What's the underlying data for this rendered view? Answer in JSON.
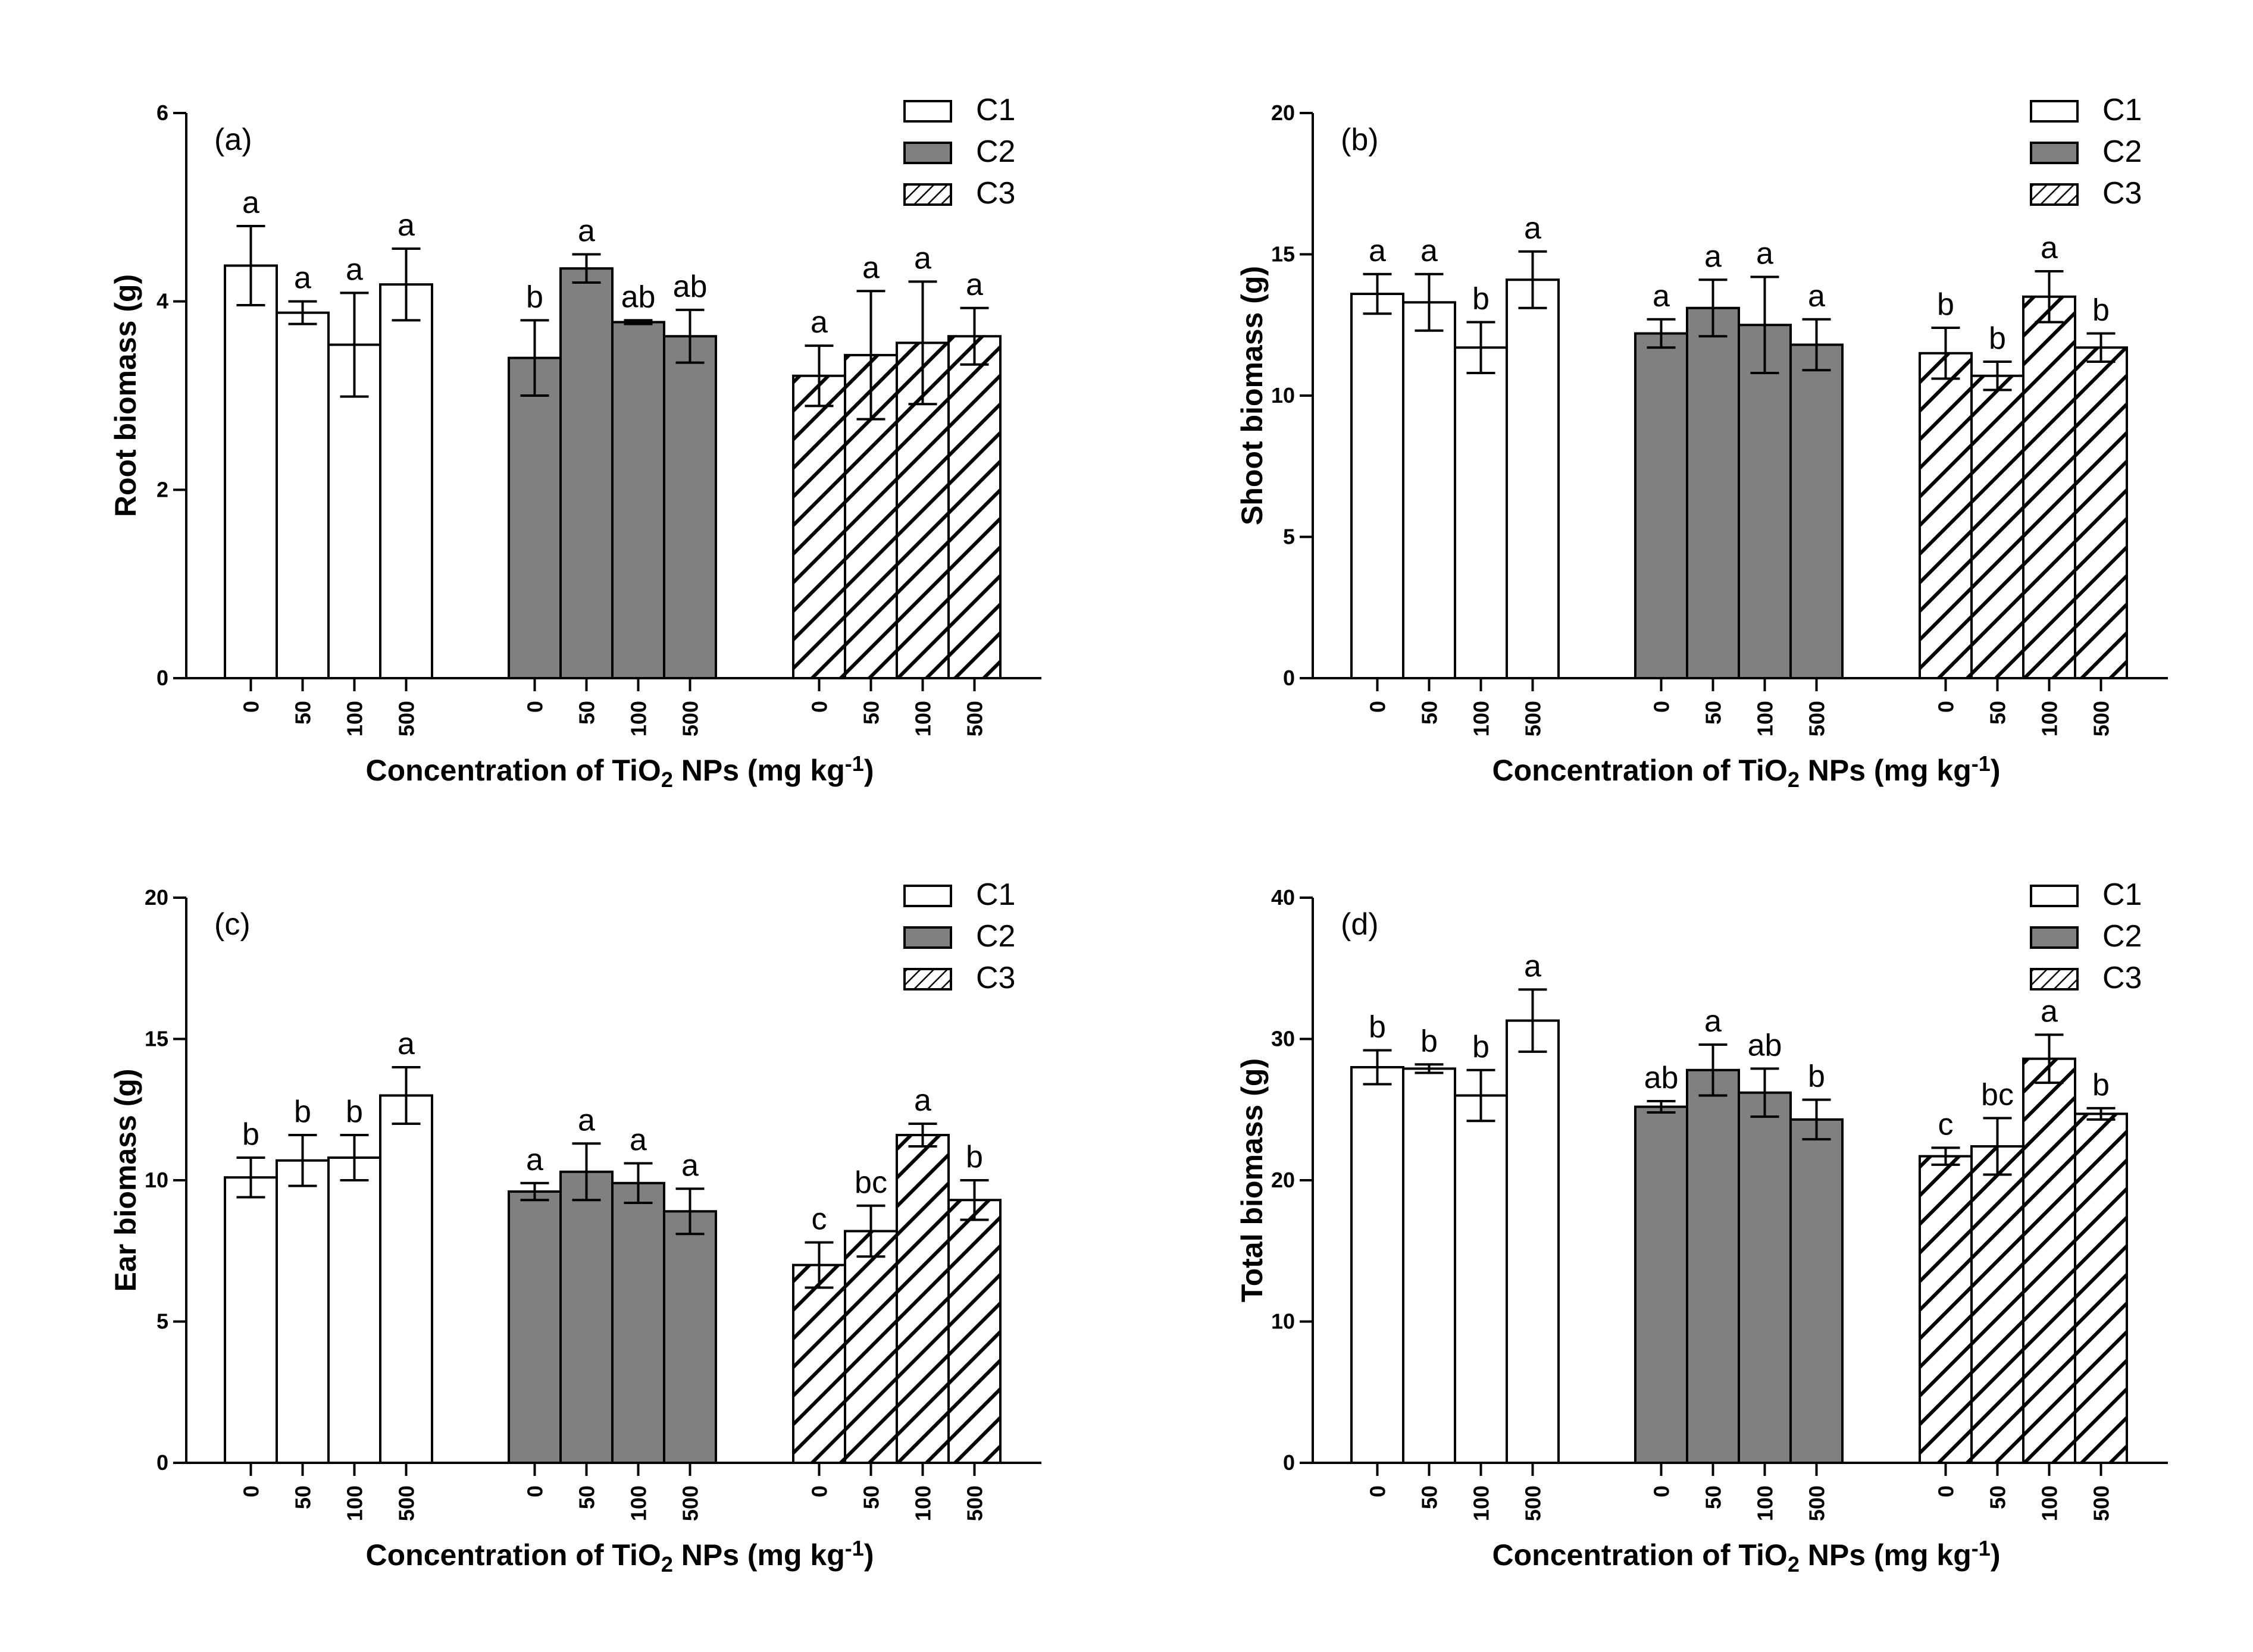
{
  "chart_data": [
    {
      "type": "bar",
      "panel_label": "(a)",
      "ylabel": "Root biomass (g)",
      "xlabel": "Concentration of TiO₂ NPs (mg kg⁻¹)",
      "ylim": [
        0,
        6
      ],
      "yticks": [
        "0",
        "2",
        "4",
        "6"
      ],
      "categories": [
        "0",
        "50",
        "100",
        "500"
      ],
      "legend_position": "top-right",
      "series": [
        {
          "name": "C1",
          "values": [
            4.38,
            3.88,
            3.54,
            4.18
          ],
          "errors": [
            0.42,
            0.12,
            0.55,
            0.38
          ],
          "letters": [
            "a",
            "a",
            "a",
            "a"
          ]
        },
        {
          "name": "C2",
          "values": [
            3.4,
            4.35,
            3.78,
            3.63
          ],
          "errors": [
            0.4,
            0.15,
            0.02,
            0.28
          ],
          "letters": [
            "b",
            "a",
            "ab",
            "ab"
          ]
        },
        {
          "name": "C3",
          "values": [
            3.21,
            3.43,
            3.56,
            3.63
          ],
          "errors": [
            0.32,
            0.68,
            0.65,
            0.3
          ],
          "letters": [
            "a",
            "a",
            "a",
            "a"
          ]
        }
      ]
    },
    {
      "type": "bar",
      "panel_label": "(b)",
      "ylabel": "Shoot biomass (g)",
      "xlabel": "Concentration of TiO₂ NPs (mg kg⁻¹)",
      "ylim": [
        0,
        20
      ],
      "yticks": [
        "0",
        "5",
        "10",
        "15",
        "20"
      ],
      "categories": [
        "0",
        "50",
        "100",
        "500"
      ],
      "legend_position": "top-right",
      "series": [
        {
          "name": "C1",
          "values": [
            13.6,
            13.3,
            11.7,
            14.1
          ],
          "errors": [
            0.7,
            1.0,
            0.9,
            1.0
          ],
          "letters": [
            "a",
            "a",
            "b",
            "a"
          ]
        },
        {
          "name": "C2",
          "values": [
            12.2,
            13.1,
            12.5,
            11.8
          ],
          "errors": [
            0.5,
            1.0,
            1.7,
            0.9
          ],
          "letters": [
            "a",
            "a",
            "a",
            "a"
          ]
        },
        {
          "name": "C3",
          "values": [
            11.5,
            10.7,
            13.5,
            11.7
          ],
          "errors": [
            0.9,
            0.5,
            0.9,
            0.5
          ],
          "letters": [
            "b",
            "b",
            "a",
            "b"
          ]
        }
      ]
    },
    {
      "type": "bar",
      "panel_label": "(c)",
      "ylabel": "Ear biomass (g)",
      "xlabel": "Concentration of TiO₂ NPs (mg kg⁻¹)",
      "ylim": [
        0,
        20
      ],
      "yticks": [
        "0",
        "5",
        "10",
        "15",
        "20"
      ],
      "categories": [
        "0",
        "50",
        "100",
        "500"
      ],
      "legend_position": "top-right",
      "series": [
        {
          "name": "C1",
          "values": [
            10.1,
            10.7,
            10.8,
            13.0
          ],
          "errors": [
            0.7,
            0.9,
            0.8,
            1.0
          ],
          "letters": [
            "b",
            "b",
            "b",
            "a"
          ]
        },
        {
          "name": "C2",
          "values": [
            9.6,
            10.3,
            9.9,
            8.9
          ],
          "errors": [
            0.3,
            1.0,
            0.7,
            0.8
          ],
          "letters": [
            "a",
            "a",
            "a",
            "a"
          ]
        },
        {
          "name": "C3",
          "values": [
            7.0,
            8.2,
            11.6,
            9.3
          ],
          "errors": [
            0.8,
            0.9,
            0.4,
            0.7
          ],
          "letters": [
            "c",
            "bc",
            "a",
            "b"
          ]
        }
      ]
    },
    {
      "type": "bar",
      "panel_label": "(d)",
      "ylabel": "Total biomass (g)",
      "xlabel": "Concentration of TiO₂ NPs (mg kg⁻¹)",
      "ylim": [
        0,
        40
      ],
      "yticks": [
        "0",
        "10",
        "20",
        "30",
        "40"
      ],
      "categories": [
        "0",
        "50",
        "100",
        "500"
      ],
      "legend_position": "top-right",
      "series": [
        {
          "name": "C1",
          "values": [
            28.0,
            27.9,
            26.0,
            31.3
          ],
          "errors": [
            1.2,
            0.3,
            1.8,
            2.2
          ],
          "letters": [
            "b",
            "b",
            "b",
            "a"
          ]
        },
        {
          "name": "C2",
          "values": [
            25.2,
            27.8,
            26.2,
            24.3
          ],
          "errors": [
            0.4,
            1.8,
            1.7,
            1.4
          ],
          "letters": [
            "ab",
            "a",
            "ab",
            "b"
          ]
        },
        {
          "name": "C3",
          "values": [
            21.7,
            22.4,
            28.6,
            24.7
          ],
          "errors": [
            0.6,
            2.0,
            1.7,
            0.4
          ],
          "letters": [
            "c",
            "bc",
            "a",
            "b"
          ]
        }
      ]
    }
  ],
  "colors": {
    "C1": "#ffffff",
    "C2": "#808080",
    "C3": "#ffffff",
    "stroke": "#000000"
  }
}
